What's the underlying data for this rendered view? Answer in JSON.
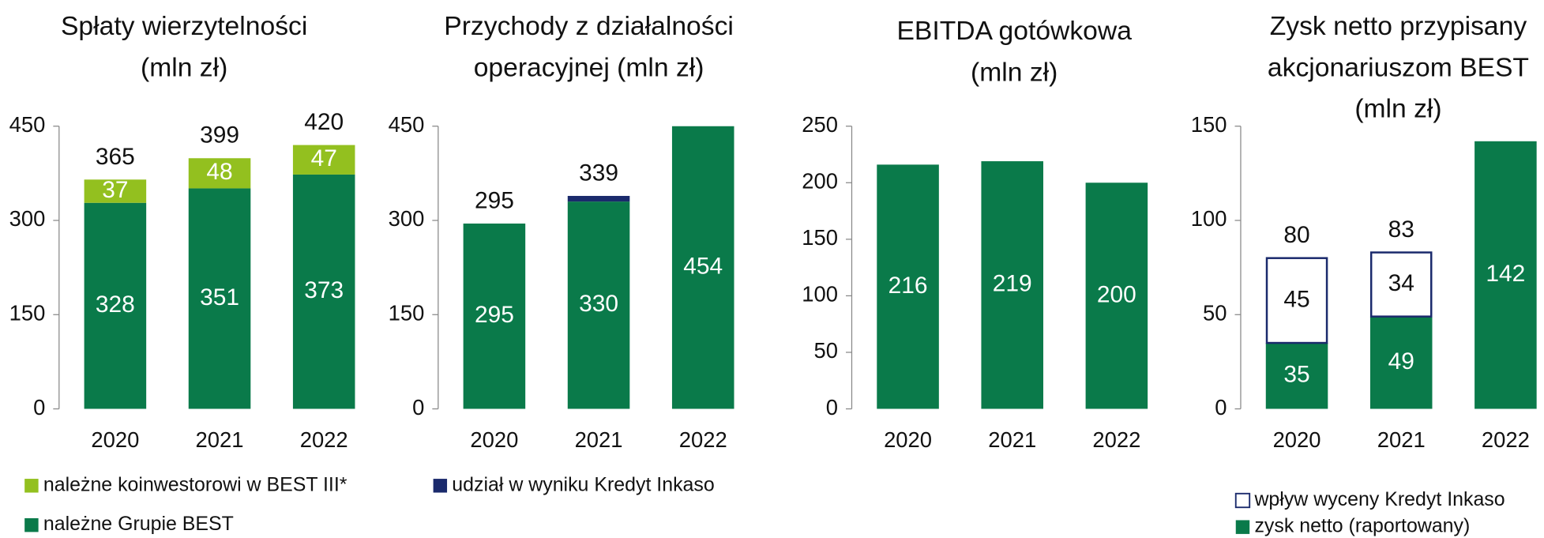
{
  "chart_data": [
    {
      "type": "stacked_bar",
      "title": [
        "Spłaty wierzytelności",
        "(mln zł)"
      ],
      "categories": [
        "2020",
        "2021",
        "2022"
      ],
      "series": [
        {
          "name": "należne Grupie BEST",
          "color": "#0a7a4a",
          "values": [
            328,
            351,
            373
          ]
        },
        {
          "name": "należne koinwestorowi w BEST III*",
          "color": "#93c01f",
          "values": [
            37,
            48,
            47
          ]
        }
      ],
      "totals": [
        365,
        399,
        420
      ],
      "ylim": [
        0,
        450
      ],
      "yticks": [
        0,
        150,
        300,
        450
      ]
    },
    {
      "type": "stacked_bar",
      "title": [
        "Przychody z działalności",
        "operacyjnej (mln zł)"
      ],
      "categories": [
        "2020",
        "2021",
        "2022"
      ],
      "series": [
        {
          "color": "#0a7a4a",
          "values": [
            295,
            330,
            454
          ]
        },
        {
          "name": "udział w wyniku Kredyt Inkaso",
          "color": "#1a2a6c",
          "values": [
            null,
            9,
            null
          ]
        }
      ],
      "totals": [
        295,
        339,
        null
      ],
      "ylim": [
        0,
        450
      ],
      "yticks": [
        0,
        150,
        300,
        450
      ]
    },
    {
      "type": "stacked_bar",
      "title": [
        "EBITDA gotówkowa",
        "(mln zł)"
      ],
      "categories": [
        "2020",
        "2021",
        "2022"
      ],
      "series": [
        {
          "color": "#0a7a4a",
          "values": [
            216,
            219,
            200
          ]
        }
      ],
      "ylim": [
        0,
        250
      ],
      "yticks": [
        0,
        50,
        100,
        150,
        200,
        250
      ]
    },
    {
      "type": "stacked_bar",
      "title": [
        "Zysk netto przypisany",
        "akcjonariuszom BEST",
        "(mln zł)"
      ],
      "categories": [
        "2020",
        "2021",
        "2022"
      ],
      "series": [
        {
          "name": "zysk netto (raportowany)",
          "color": "#0a7a4a",
          "values": [
            35,
            49,
            142
          ]
        },
        {
          "name": "wpływ wyceny Kredyt Inkaso",
          "color": "#1a2a6c",
          "outline": true,
          "values": [
            45,
            34,
            null
          ]
        }
      ],
      "totals": [
        80,
        83,
        null
      ],
      "ylim": [
        0,
        150
      ],
      "yticks": [
        0,
        50,
        100,
        150
      ]
    }
  ]
}
